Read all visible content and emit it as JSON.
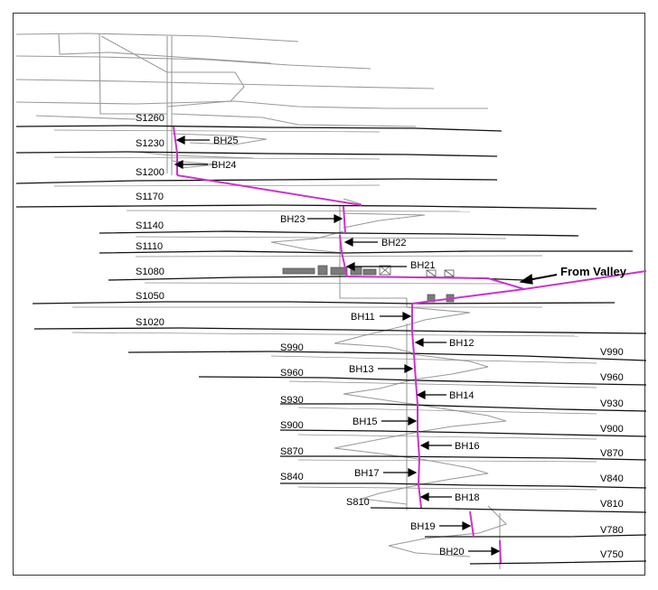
{
  "colors": {
    "level_line": "#111111",
    "borehole": "#cc33cc",
    "outline": "#9a9a9a",
    "arrow": "#000000",
    "equipment": "#7a7a7a"
  },
  "levels_s": [
    "S1260",
    "S1230",
    "S1200",
    "S1170",
    "S1140",
    "S1110",
    "S1080",
    "S1050",
    "S1020",
    "S990",
    "S960",
    "S930",
    "S900",
    "S870",
    "S840",
    "S810"
  ],
  "levels_v": [
    "V990",
    "V960",
    "V930",
    "V900",
    "V870",
    "V840",
    "V810",
    "V780",
    "V750"
  ],
  "boreholes": [
    "BH25",
    "BH24",
    "BH23",
    "BH22",
    "BH21",
    "BH11",
    "BH12",
    "BH13",
    "BH14",
    "BH15",
    "BH16",
    "BH17",
    "BH18",
    "BH19",
    "BH20"
  ],
  "callout": "From Valley"
}
